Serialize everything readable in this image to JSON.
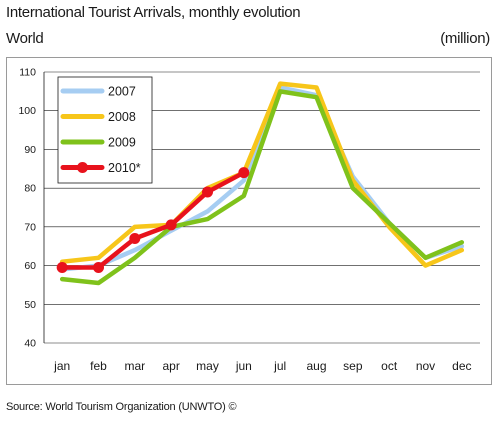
{
  "header": {
    "title": "International Tourist Arrivals, monthly evolution",
    "region": "World",
    "unit": "(million)"
  },
  "footer": {
    "source": "Source: World Tourism Organization (UNWTO) ©"
  },
  "colors": {
    "2007": "#a6cdf2",
    "2008": "#f7c61a",
    "2009": "#7fc21b",
    "2010": "#e8121c",
    "grid": "#1a1a1a"
  },
  "chart_data": {
    "type": "line",
    "x": [
      "jan",
      "feb",
      "mar",
      "apr",
      "may",
      "jun",
      "jul",
      "aug",
      "sep",
      "oct",
      "nov",
      "dec"
    ],
    "ylim": [
      40,
      110
    ],
    "yticks": [
      40,
      50,
      60,
      70,
      80,
      90,
      100,
      110
    ],
    "grid": "horizontal",
    "legend_position": "top-left",
    "title": "International Tourist Arrivals, monthly evolution",
    "xlabel": "",
    "ylabel": "(million)",
    "series": [
      {
        "name": "2007",
        "color": "#a6cdf2",
        "markers": false,
        "values": [
          59,
          60,
          64,
          69,
          74,
          82,
          106,
          104,
          83,
          71,
          62,
          65
        ]
      },
      {
        "name": "2008",
        "color": "#f7c61a",
        "markers": false,
        "values": [
          61,
          62,
          70,
          70.5,
          80,
          84,
          107,
          106,
          82,
          70,
          60,
          64
        ]
      },
      {
        "name": "2009",
        "color": "#7fc21b",
        "markers": false,
        "values": [
          56.5,
          55.5,
          62,
          70,
          72,
          78,
          105,
          103.5,
          80,
          71,
          62,
          66
        ]
      },
      {
        "name": "2010*",
        "color": "#e8121c",
        "markers": true,
        "values": [
          59.5,
          59.5,
          67,
          70.5,
          79,
          84,
          null,
          null,
          null,
          null,
          null,
          null
        ]
      }
    ]
  }
}
